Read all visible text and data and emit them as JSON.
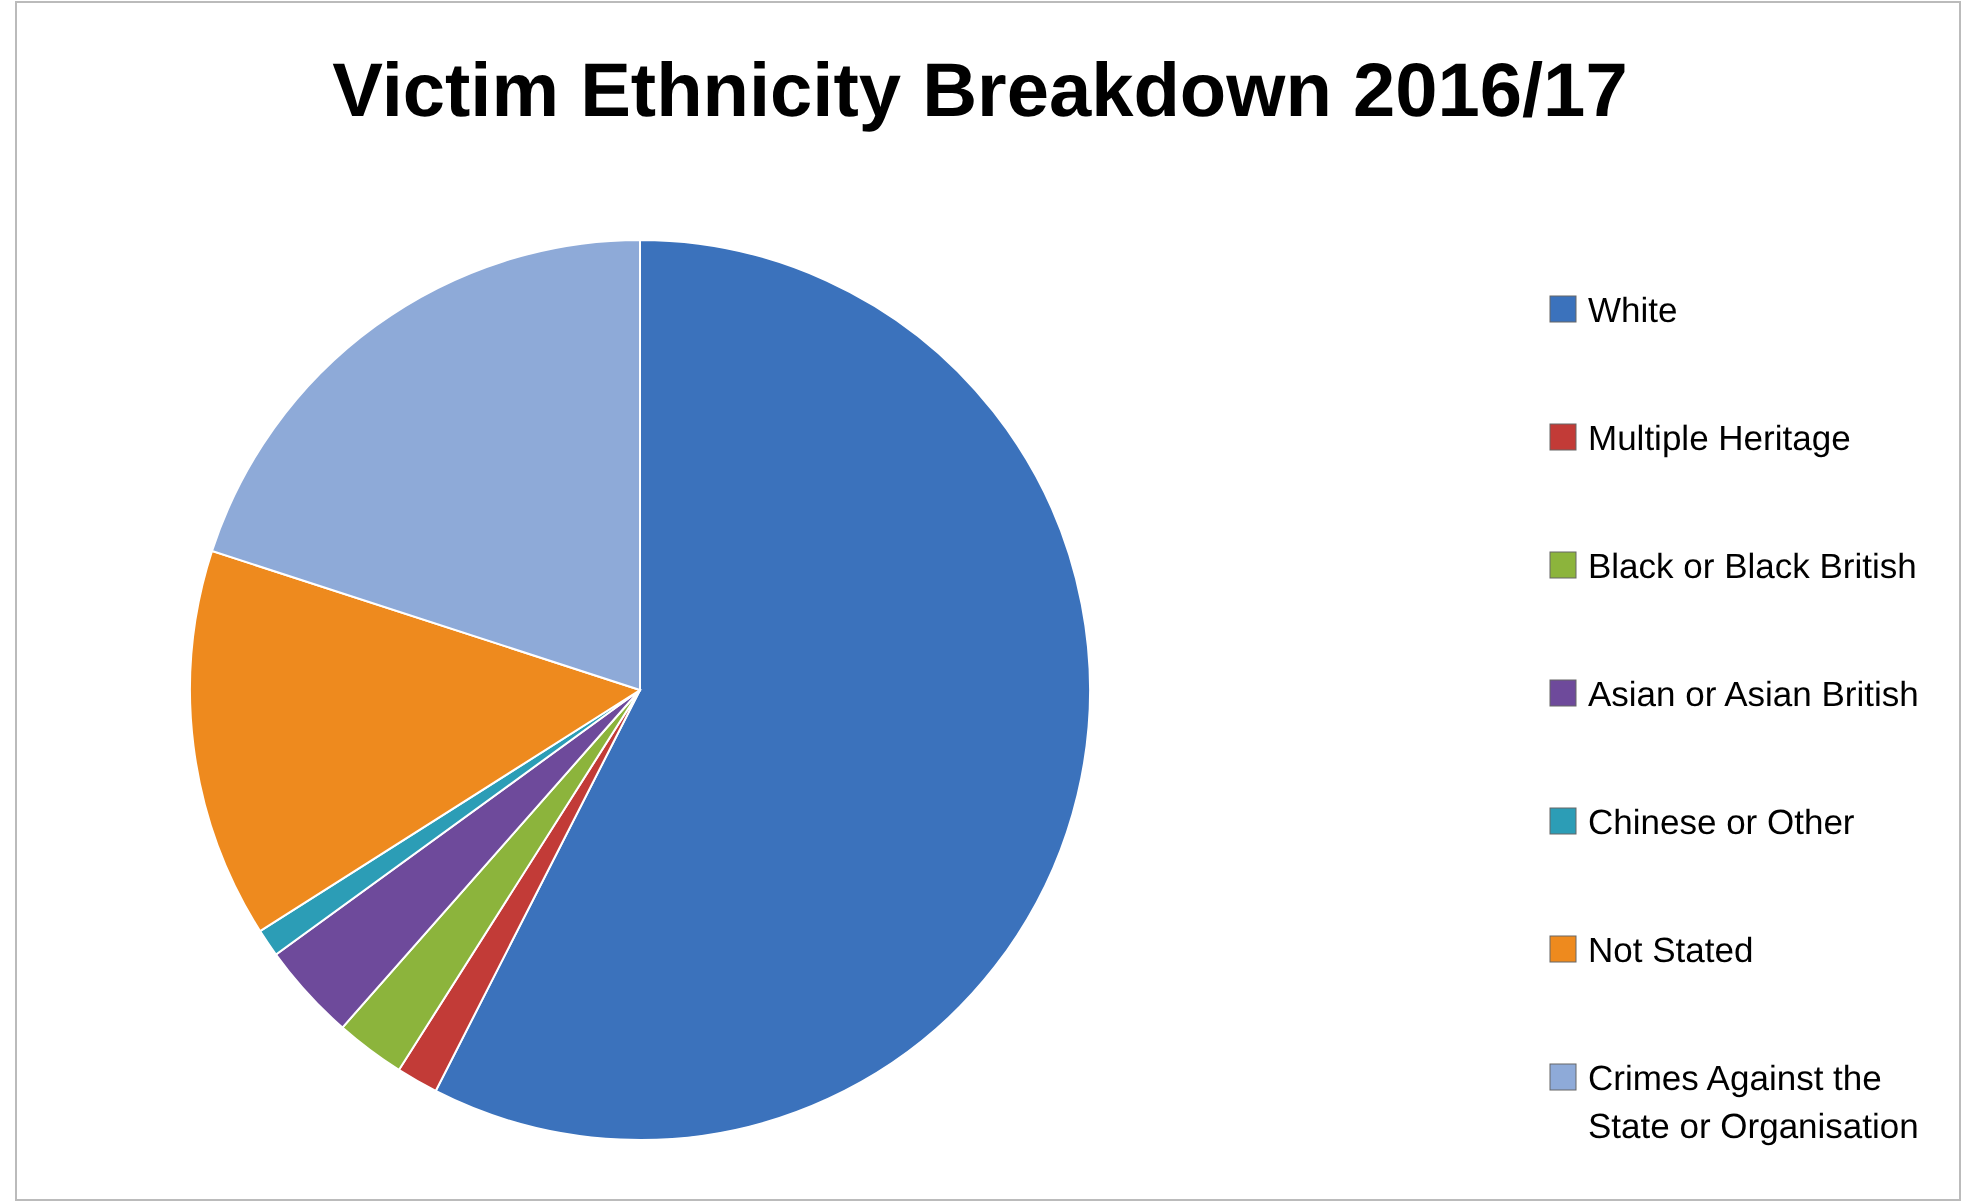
{
  "chart_data": {
    "type": "pie",
    "title": "Victim Ethnicity Breakdown 2016/17",
    "categories": [
      "White",
      "Multiple Heritage",
      "Black or Black British",
      "Asian or Asian British",
      "Chinese or  Other",
      "Not Stated",
      "Crimes Against the State or Organisation"
    ],
    "values": [
      57.5,
      1.5,
      2.5,
      3.5,
      1,
      14,
      20
    ],
    "colors": [
      "#3b72bc",
      "#c23b37",
      "#8cb43c",
      "#6e4a9b",
      "#2c9db6",
      "#ee8a1e",
      "#8eaad8"
    ],
    "legend": "right"
  }
}
